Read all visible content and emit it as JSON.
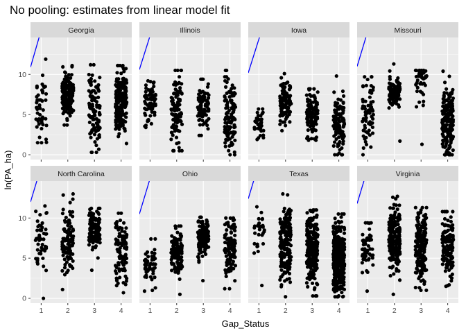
{
  "chart_data": {
    "type": "scatter",
    "title": "No pooling: estimates from linear model fit",
    "xlabel": "Gap_Status",
    "ylabel": "ln(PA_ha)",
    "x_ticks": [
      "1",
      "2",
      "3",
      "4"
    ],
    "y_ticks": [
      "0",
      "5",
      "10"
    ],
    "xlim": [
      0.6,
      4.4
    ],
    "ylim": [
      -0.6,
      14.6
    ],
    "layout": "facet_wrap, 2 rows x 4 columns",
    "grid": true,
    "colors": {
      "panel_bg": "#ebebeb",
      "grid_major": "#ffffff",
      "grid_minor": "#f5f5f5",
      "strip_bg": "#d9d9d9",
      "point": "#000000",
      "fit_line": "#0000ff"
    },
    "facets": [
      {
        "state": "Georgia",
        "line": {
          "intercept": 10.9,
          "slope": 11.5
        },
        "groups": [
          {
            "x": 1,
            "n": 48,
            "min": 1.5,
            "max": 11.9,
            "center": 6.0,
            "spread": 2.3
          },
          {
            "x": 2,
            "n": 160,
            "min": 3.7,
            "max": 11.1,
            "center": 7.4,
            "spread": 1.4
          },
          {
            "x": 3,
            "n": 110,
            "min": 0.3,
            "max": 11.2,
            "center": 5.8,
            "spread": 2.4
          },
          {
            "x": 4,
            "n": 200,
            "min": 1.4,
            "max": 11.1,
            "center": 7.0,
            "spread": 2.0
          }
        ]
      },
      {
        "state": "Illinois",
        "line": {
          "intercept": 10.6,
          "slope": 10.5
        },
        "groups": [
          {
            "x": 1,
            "n": 80,
            "min": 3.4,
            "max": 9.2,
            "center": 6.3,
            "spread": 1.5
          },
          {
            "x": 2,
            "n": 110,
            "min": 0.5,
            "max": 10.5,
            "center": 5.6,
            "spread": 2.0
          },
          {
            "x": 3,
            "n": 90,
            "min": 2.4,
            "max": 9.4,
            "center": 6.2,
            "spread": 1.5
          },
          {
            "x": 4,
            "n": 110,
            "min": 0.0,
            "max": 10.5,
            "center": 4.8,
            "spread": 2.3
          }
        ]
      },
      {
        "state": "Iowa",
        "line": {
          "intercept": 10.2,
          "slope": 10.5
        },
        "groups": [
          {
            "x": 1,
            "n": 35,
            "min": 1.9,
            "max": 5.7,
            "center": 3.7,
            "spread": 1.0
          },
          {
            "x": 2,
            "n": 110,
            "min": 3.0,
            "max": 10.1,
            "center": 6.6,
            "spread": 1.3
          },
          {
            "x": 3,
            "n": 110,
            "min": 1.8,
            "max": 8.2,
            "center": 5.2,
            "spread": 1.4
          },
          {
            "x": 4,
            "n": 110,
            "min": 0.0,
            "max": 9.8,
            "center": 3.5,
            "spread": 1.8
          }
        ]
      },
      {
        "state": "Missouri",
        "line": {
          "intercept": 11.0,
          "slope": 11.0
        },
        "groups": [
          {
            "x": 1,
            "n": 70,
            "min": 0.0,
            "max": 9.7,
            "center": 5.0,
            "spread": 2.0
          },
          {
            "x": 2,
            "n": 100,
            "min": 1.7,
            "max": 11.3,
            "center": 7.8,
            "spread": 0.9
          },
          {
            "x": 3,
            "n": 45,
            "min": 1.3,
            "max": 10.5,
            "center": 9.5,
            "spread": 1.3
          },
          {
            "x": 4,
            "n": 170,
            "min": 0.0,
            "max": 10.4,
            "center": 4.2,
            "spread": 2.3
          }
        ]
      },
      {
        "state": "North Carolina",
        "line": {
          "intercept": 12.0,
          "slope": 11.0
        },
        "groups": [
          {
            "x": 1,
            "n": 50,
            "min": 0.0,
            "max": 11.5,
            "center": 7.5,
            "spread": 2.0
          },
          {
            "x": 2,
            "n": 110,
            "min": 1.1,
            "max": 13.0,
            "center": 7.2,
            "spread": 2.2
          },
          {
            "x": 3,
            "n": 120,
            "min": 3.5,
            "max": 11.2,
            "center": 8.7,
            "spread": 1.2
          },
          {
            "x": 4,
            "n": 110,
            "min": 0.7,
            "max": 10.6,
            "center": 6.5,
            "spread": 1.9
          }
        ]
      },
      {
        "state": "Ohio",
        "line": {
          "intercept": 10.5,
          "slope": 11.0
        },
        "groups": [
          {
            "x": 1,
            "n": 55,
            "min": 0.9,
            "max": 7.4,
            "center": 4.2,
            "spread": 1.5
          },
          {
            "x": 2,
            "n": 140,
            "min": 0.5,
            "max": 9.0,
            "center": 5.8,
            "spread": 1.3
          },
          {
            "x": 3,
            "n": 140,
            "min": 2.2,
            "max": 10.1,
            "center": 7.5,
            "spread": 1.1
          },
          {
            "x": 4,
            "n": 110,
            "min": 1.2,
            "max": 10.0,
            "center": 6.3,
            "spread": 1.8
          }
        ]
      },
      {
        "state": "Texas",
        "line": {
          "intercept": 12.4,
          "slope": 11.0
        },
        "groups": [
          {
            "x": 1,
            "n": 30,
            "min": 1.6,
            "max": 11.4,
            "center": 8.2,
            "spread": 1.4
          },
          {
            "x": 2,
            "n": 200,
            "min": 0.2,
            "max": 13.0,
            "center": 7.0,
            "spread": 2.3
          },
          {
            "x": 3,
            "n": 230,
            "min": 0.3,
            "max": 11.0,
            "center": 6.2,
            "spread": 2.2
          },
          {
            "x": 4,
            "n": 450,
            "min": 0.2,
            "max": 10.5,
            "center": 5.0,
            "spread": 2.1
          }
        ]
      },
      {
        "state": "Virginia",
        "line": {
          "intercept": 11.8,
          "slope": 11.0
        },
        "groups": [
          {
            "x": 1,
            "n": 55,
            "min": 0.9,
            "max": 9.4,
            "center": 6.0,
            "spread": 1.8
          },
          {
            "x": 2,
            "n": 200,
            "min": 0.5,
            "max": 12.7,
            "center": 7.5,
            "spread": 2.0
          },
          {
            "x": 3,
            "n": 200,
            "min": 1.0,
            "max": 11.3,
            "center": 6.7,
            "spread": 2.1
          },
          {
            "x": 4,
            "n": 130,
            "min": 1.5,
            "max": 10.8,
            "center": 6.5,
            "spread": 2.1
          }
        ]
      }
    ]
  }
}
